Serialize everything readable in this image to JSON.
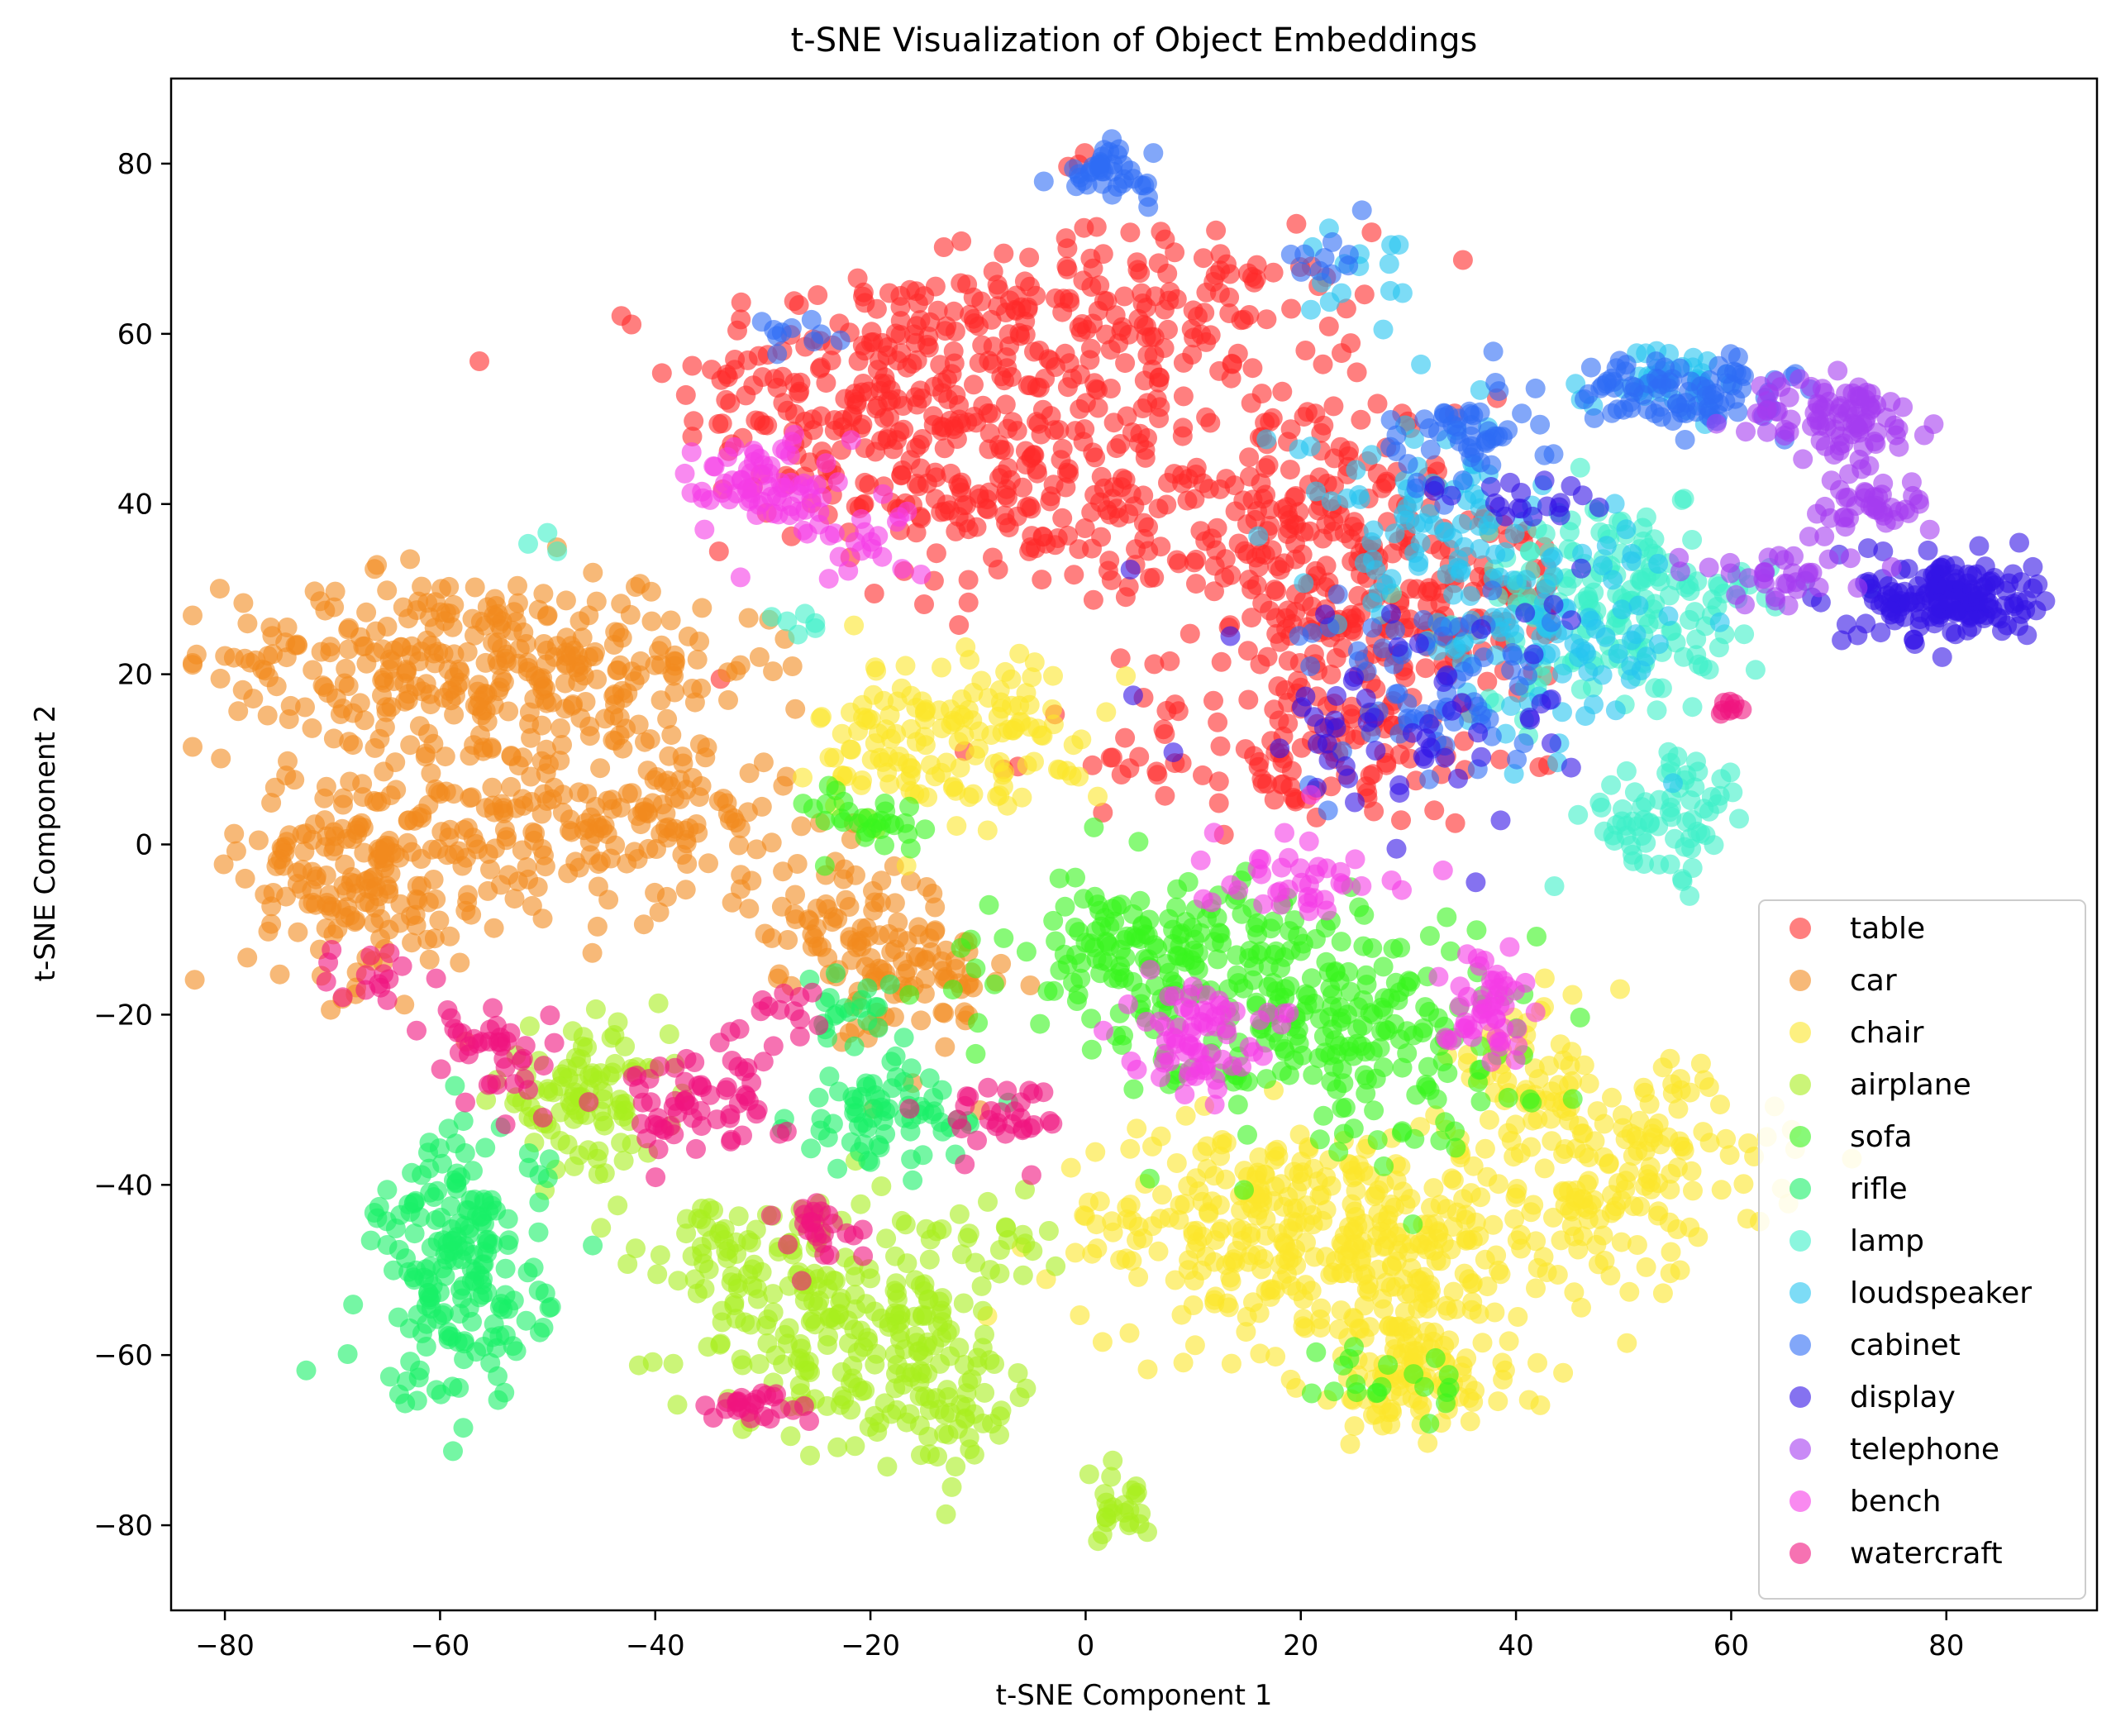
{
  "chart_data": {
    "type": "scatter",
    "title": "t-SNE Visualization of Object Embeddings",
    "xlabel": "t-SNE Component 1",
    "ylabel": "t-SNE Component 2",
    "xlim": [
      -85,
      94
    ],
    "ylim": [
      -90,
      90
    ],
    "xticks": [
      -80,
      -60,
      -40,
      -20,
      0,
      20,
      40,
      60,
      80
    ],
    "yticks": [
      -80,
      -60,
      -40,
      -20,
      0,
      20,
      40,
      60,
      80
    ],
    "tick_labels_x": [
      "−80",
      "−60",
      "−40",
      "−20",
      "0",
      "20",
      "40",
      "60",
      "80"
    ],
    "tick_labels_y": [
      "−80",
      "−60",
      "−40",
      "−20",
      "0",
      "20",
      "40",
      "60",
      "80"
    ],
    "grid": false,
    "legend_position": "lower-right",
    "marker_alpha": 0.6,
    "series": [
      {
        "name": "table",
        "color": "#ff2a2a",
        "clusters": [
          {
            "cx": -20,
            "cy": 53,
            "sx": 9,
            "sy": 8,
            "n": 220
          },
          {
            "cx": -5,
            "cy": 42,
            "sx": 9,
            "sy": 7,
            "n": 200
          },
          {
            "cx": 5,
            "cy": 62,
            "sx": 10,
            "sy": 5,
            "n": 170
          },
          {
            "cx": 20,
            "cy": 38,
            "sx": 7,
            "sy": 8,
            "n": 150
          },
          {
            "cx": 25,
            "cy": 25,
            "sx": 8,
            "sy": 8,
            "n": 160
          },
          {
            "cx": 20,
            "cy": 10,
            "sx": 10,
            "sy": 4,
            "n": 90
          },
          {
            "cx": 35,
            "cy": 30,
            "sx": 6,
            "sy": 6,
            "n": 60
          },
          {
            "cx": 0,
            "cy": 80,
            "sx": 1,
            "sy": 1,
            "n": 3
          }
        ]
      },
      {
        "name": "car",
        "color": "#f28a1e",
        "clusters": [
          {
            "cx": -60,
            "cy": 22,
            "sx": 10,
            "sy": 5,
            "n": 240
          },
          {
            "cx": -43,
            "cy": 21,
            "sx": 7,
            "sy": 4,
            "n": 80
          },
          {
            "cx": -68,
            "cy": -3,
            "sx": 5,
            "sy": 7,
            "n": 180
          },
          {
            "cx": -50,
            "cy": 2,
            "sx": 7,
            "sy": 6,
            "n": 140
          },
          {
            "cx": -37,
            "cy": 5,
            "sx": 6,
            "sy": 5,
            "n": 70
          },
          {
            "cx": -22,
            "cy": -9,
            "sx": 5,
            "sy": 4,
            "n": 80
          },
          {
            "cx": -15,
            "cy": -18,
            "sx": 4,
            "sy": 5,
            "n": 60
          }
        ]
      },
      {
        "name": "chair",
        "color": "#fbe62c",
        "clusters": [
          {
            "cx": -17,
            "cy": 12,
            "sx": 4,
            "sy": 5,
            "n": 90
          },
          {
            "cx": -6,
            "cy": 14,
            "sx": 4,
            "sy": 5,
            "n": 60
          },
          {
            "cx": 15,
            "cy": -45,
            "sx": 9,
            "sy": 6,
            "n": 200
          },
          {
            "cx": 30,
            "cy": -48,
            "sx": 8,
            "sy": 8,
            "n": 220
          },
          {
            "cx": 50,
            "cy": -38,
            "sx": 7,
            "sy": 6,
            "n": 150
          },
          {
            "cx": 30,
            "cy": -63,
            "sx": 5,
            "sy": 4,
            "n": 90
          },
          {
            "cx": 42,
            "cy": -26,
            "sx": 4,
            "sy": 4,
            "n": 50
          }
        ]
      },
      {
        "name": "airplane",
        "color": "#a8ee1e",
        "clusters": [
          {
            "cx": -47,
            "cy": -30,
            "sx": 4,
            "sy": 4,
            "n": 100
          },
          {
            "cx": -24,
            "cy": -55,
            "sx": 7,
            "sy": 6,
            "n": 190
          },
          {
            "cx": -14,
            "cy": -65,
            "sx": 5,
            "sy": 4,
            "n": 90
          },
          {
            "cx": -35,
            "cy": -47,
            "sx": 3,
            "sy": 3,
            "n": 30
          },
          {
            "cx": 3,
            "cy": -78,
            "sx": 2,
            "sy": 2,
            "n": 25
          },
          {
            "cx": -8,
            "cy": -48,
            "sx": 2,
            "sy": 3,
            "n": 20
          }
        ]
      },
      {
        "name": "sofa",
        "color": "#39f51e",
        "clusters": [
          {
            "cx": 7,
            "cy": -13,
            "sx": 7,
            "sy": 5,
            "n": 180
          },
          {
            "cx": 25,
            "cy": -22,
            "sx": 8,
            "sy": 7,
            "n": 200
          },
          {
            "cx": -20,
            "cy": 3,
            "sx": 3,
            "sy": 2,
            "n": 30
          },
          {
            "cx": 28,
            "cy": -63,
            "sx": 3,
            "sy": 3,
            "n": 20
          }
        ]
      },
      {
        "name": "rifle",
        "color": "#19f068",
        "clusters": [
          {
            "cx": -58,
            "cy": -50,
            "sx": 4,
            "sy": 8,
            "n": 200
          },
          {
            "cx": -19,
            "cy": -32,
            "sx": 4,
            "sy": 3,
            "n": 70
          },
          {
            "cx": -22,
            "cy": -20,
            "sx": 2,
            "sy": 2,
            "n": 20
          }
        ]
      },
      {
        "name": "lamp",
        "color": "#3ef0c8",
        "clusters": [
          {
            "cx": 50,
            "cy": 28,
            "sx": 7,
            "sy": 6,
            "n": 180
          },
          {
            "cx": 54,
            "cy": 3,
            "sx": 4,
            "sy": 4,
            "n": 70
          },
          {
            "cx": -51,
            "cy": 36,
            "sx": 1,
            "sy": 1,
            "n": 3
          },
          {
            "cx": -28,
            "cy": 24,
            "sx": 2,
            "sy": 2,
            "n": 6
          }
        ]
      },
      {
        "name": "loudspeaker",
        "color": "#26c4f0",
        "clusters": [
          {
            "cx": 32,
            "cy": 38,
            "sx": 6,
            "sy": 6,
            "n": 90
          },
          {
            "cx": 45,
            "cy": 25,
            "sx": 6,
            "sy": 6,
            "n": 80
          },
          {
            "cx": 55,
            "cy": 55,
            "sx": 4,
            "sy": 2,
            "n": 40
          },
          {
            "cx": 25,
            "cy": 68,
            "sx": 3,
            "sy": 3,
            "n": 15
          }
        ]
      },
      {
        "name": "cabinet",
        "color": "#2f6df5",
        "clusters": [
          {
            "cx": 2,
            "cy": 79,
            "sx": 2,
            "sy": 1.5,
            "n": 40
          },
          {
            "cx": 55,
            "cy": 53,
            "sx": 5,
            "sy": 2,
            "n": 90
          },
          {
            "cx": 35,
            "cy": 48,
            "sx": 4,
            "sy": 3,
            "n": 50
          },
          {
            "cx": 33,
            "cy": 18,
            "sx": 6,
            "sy": 6,
            "n": 70
          },
          {
            "cx": -27,
            "cy": 60,
            "sx": 2,
            "sy": 1,
            "n": 10
          },
          {
            "cx": 23,
            "cy": 69,
            "sx": 2,
            "sy": 2,
            "n": 10
          }
        ]
      },
      {
        "name": "display",
        "color": "#3414e6",
        "clusters": [
          {
            "cx": 80,
            "cy": 29,
            "sx": 4,
            "sy": 2.5,
            "n": 170
          },
          {
            "cx": 30,
            "cy": 15,
            "sx": 8,
            "sy": 8,
            "n": 60
          },
          {
            "cx": 42,
            "cy": 40,
            "sx": 4,
            "sy": 2,
            "n": 20
          }
        ]
      },
      {
        "name": "telephone",
        "color": "#a53cf0",
        "clusters": [
          {
            "cx": 70,
            "cy": 50,
            "sx": 4,
            "sy": 2.5,
            "n": 90
          },
          {
            "cx": 73,
            "cy": 40,
            "sx": 3,
            "sy": 2,
            "n": 40
          },
          {
            "cx": 65,
            "cy": 32,
            "sx": 4,
            "sy": 2,
            "n": 35
          }
        ]
      },
      {
        "name": "bench",
        "color": "#f53ce6",
        "clusters": [
          {
            "cx": -30,
            "cy": 42,
            "sx": 3,
            "sy": 3,
            "n": 70
          },
          {
            "cx": 10,
            "cy": -22,
            "sx": 3,
            "sy": 3,
            "n": 70
          },
          {
            "cx": 37,
            "cy": -19,
            "sx": 2,
            "sy": 3,
            "n": 50
          },
          {
            "cx": 20,
            "cy": -3,
            "sx": 5,
            "sy": 3,
            "n": 40
          },
          {
            "cx": -20,
            "cy": 35,
            "sx": 3,
            "sy": 3,
            "n": 20
          }
        ]
      },
      {
        "name": "watercraft",
        "color": "#f0147e",
        "clusters": [
          {
            "cx": -37,
            "cy": -30,
            "sx": 4,
            "sy": 3,
            "n": 60
          },
          {
            "cx": -25,
            "cy": -45,
            "sx": 2,
            "sy": 2,
            "n": 25
          },
          {
            "cx": -31,
            "cy": -66,
            "sx": 3,
            "sy": 1,
            "n": 25
          },
          {
            "cx": -55,
            "cy": -25,
            "sx": 3,
            "sy": 4,
            "n": 40
          },
          {
            "cx": -8,
            "cy": -32,
            "sx": 3,
            "sy": 2,
            "n": 30
          },
          {
            "cx": -29,
            "cy": -20,
            "sx": 2,
            "sy": 2,
            "n": 15
          },
          {
            "cx": -66,
            "cy": -15,
            "sx": 3,
            "sy": 2,
            "n": 15
          },
          {
            "cx": 60,
            "cy": 16,
            "sx": 1,
            "sy": 0.5,
            "n": 8
          }
        ]
      }
    ]
  }
}
